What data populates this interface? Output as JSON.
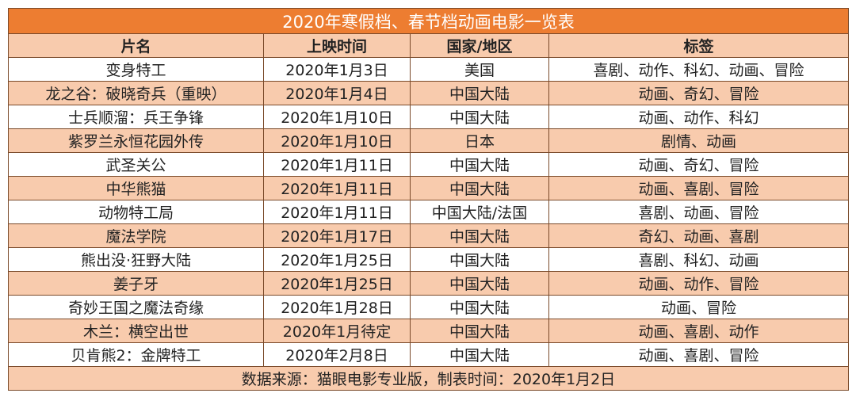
{
  "table": {
    "title": "2020年寒假档、春节档动画电影一览表",
    "headers": [
      "片名",
      "上映时间",
      "国家/地区",
      "标签"
    ],
    "rows": [
      {
        "title": "变身特工",
        "date": "2020年1月3日",
        "region": "美国",
        "tags": "喜剧、动作、科幻、动画、冒险"
      },
      {
        "title": "龙之谷：破晓奇兵（重映）",
        "date": "2020年1月4日",
        "region": "中国大陆",
        "tags": "动画、奇幻、冒险"
      },
      {
        "title": "士兵顺溜：兵王争锋",
        "date": "2020年1月10日",
        "region": "中国大陆",
        "tags": "动画、动作、科幻"
      },
      {
        "title": "紫罗兰永恒花园外传",
        "date": "2020年1月10日",
        "region": "日本",
        "tags": "剧情、动画"
      },
      {
        "title": "武圣关公",
        "date": "2020年1月11日",
        "region": "中国大陆",
        "tags": "动画、奇幻、冒险"
      },
      {
        "title": "中华熊猫",
        "date": "2020年1月11日",
        "region": "中国大陆",
        "tags": "动画、喜剧、冒险"
      },
      {
        "title": "动物特工局",
        "date": "2020年1月11日",
        "region": "中国大陆/法国",
        "tags": "喜剧、动画、冒险"
      },
      {
        "title": "魔法学院",
        "date": "2020年1月17日",
        "region": "中国大陆",
        "tags": "奇幻、动画、喜剧"
      },
      {
        "title": "熊出没·狂野大陆",
        "date": "2020年1月25日",
        "region": "中国大陆",
        "tags": "喜剧、科幻、动画"
      },
      {
        "title": "姜子牙",
        "date": "2020年1月25日",
        "region": "中国大陆",
        "tags": "动画、动作、冒险"
      },
      {
        "title": "奇妙王国之魔法奇缘",
        "date": "2020年1月28日",
        "region": "中国大陆",
        "tags": "动画、冒险"
      },
      {
        "title": "木兰：横空出世",
        "date": "2020年1月待定",
        "region": "中国大陆",
        "tags": "动画、喜剧、动作"
      },
      {
        "title": "贝肯熊2：金牌特工",
        "date": "2020年2月8日",
        "region": "中国大陆",
        "tags": "动画、喜剧、冒险"
      }
    ],
    "footer": "数据来源：猫眼电影专业版，制表时间：2020年1月2日"
  },
  "colors": {
    "title_bg": "#ed7d31",
    "header_bg": "#f8cbad",
    "row_alt_bg": "#f8cbad",
    "row_bg": "#ffffff"
  }
}
